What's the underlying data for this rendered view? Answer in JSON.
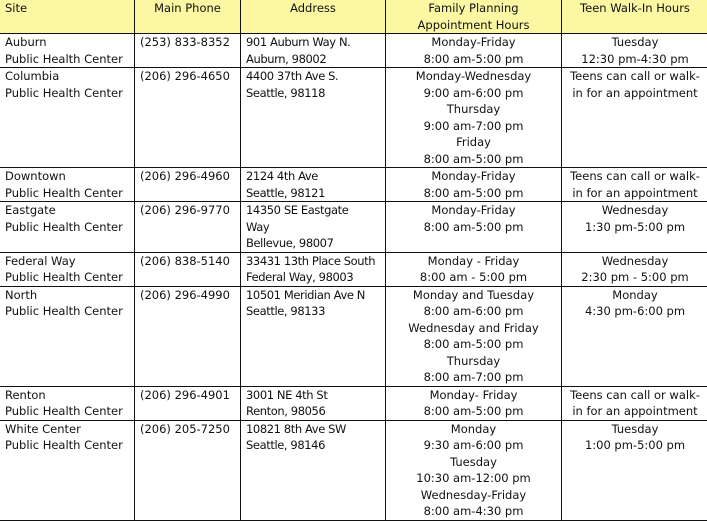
{
  "header": {
    "site": "Site",
    "phone": "Main Phone",
    "address": "Address",
    "family_planning": "Family Planning Appointment Hours",
    "teen": "Teen Walk-In Hours"
  },
  "colors": {
    "header_bg": "#fbf7a3"
  },
  "rows": [
    {
      "site": [
        "Auburn",
        "Public Health Center"
      ],
      "phone": "(253) 833-8352",
      "address": [
        "901 Auburn Way N.",
        "Auburn, 98002"
      ],
      "fp": [
        "Monday-Friday",
        "8:00 am-5:00 pm"
      ],
      "teen": [
        "Tuesday",
        "12:30 pm-4:30 pm"
      ]
    },
    {
      "site": [
        "Columbia",
        "Public Health Center"
      ],
      "phone": "(206) 296-4650",
      "address": [
        "4400 37th Ave S.",
        "Seattle, 98118"
      ],
      "fp": [
        "Monday-Wednesday",
        "9:00 am-6:00 pm",
        "Thursday",
        "9:00 am-7:00 pm",
        "Friday",
        "8:00 am-5:00 pm"
      ],
      "teen": [
        "Teens can call or walk-",
        "in for an appointment"
      ]
    },
    {
      "site": [
        "Downtown",
        "Public Health Center"
      ],
      "phone": "(206) 296-4960",
      "address": [
        "2124 4th Ave",
        "Seattle, 98121"
      ],
      "fp": [
        "Monday-Friday",
        "8:00 am-5:00 pm"
      ],
      "teen": [
        "Teens can call or walk-",
        "in for an appointment"
      ]
    },
    {
      "site": [
        "Eastgate",
        "Public Health Center"
      ],
      "phone": "(206) 296-9770",
      "address": [
        "14350 SE Eastgate",
        "Way",
        "Bellevue, 98007"
      ],
      "fp": [
        "Monday-Friday",
        "8:00 am-5:00 pm"
      ],
      "teen": [
        "Wednesday",
        "1:30 pm-5:00 pm"
      ]
    },
    {
      "site": [
        "Federal Way",
        "Public Health Center"
      ],
      "phone": "(206) 838-5140",
      "address": [
        "33431 13th Place South",
        "Federal Way, 98003"
      ],
      "fp": [
        "Monday - Friday",
        "8:00 am - 5:00 pm"
      ],
      "teen": [
        "Wednesday",
        "2:30 pm - 5:00 pm"
      ]
    },
    {
      "site": [
        "North",
        "Public Health Center"
      ],
      "phone": "(206) 296-4990",
      "address": [
        "10501 Meridian Ave N",
        "Seattle, 98133"
      ],
      "fp": [
        "Monday and Tuesday",
        "8:00 am-6:00 pm",
        "Wednesday and Friday",
        "8:00 am-5:00 pm",
        "Thursday",
        "8:00 am-7:00 pm"
      ],
      "teen": [
        "Monday",
        "4:30 pm-6:00 pm"
      ]
    },
    {
      "site": [
        "Renton",
        "Public Health Center"
      ],
      "phone": "(206) 296-4901",
      "address": [
        "3001 NE 4th St",
        "Renton, 98056"
      ],
      "fp": [
        "Monday- Friday",
        "8:00 am-5:00 pm"
      ],
      "teen": [
        "Teens can call or walk-",
        "in for an appointment"
      ]
    },
    {
      "site": [
        "White Center",
        "Public Health Center"
      ],
      "phone": "(206) 205-7250",
      "address": [
        "10821 8th Ave SW",
        "Seattle, 98146"
      ],
      "fp": [
        "Monday",
        "9:30 am-6:00 pm",
        "Tuesday",
        "10:30 am-12:00 pm",
        "Wednesday-Friday",
        "8:00 am-4:30 pm"
      ],
      "teen": [
        "Tuesday",
        "1:00 pm-5:00 pm"
      ]
    }
  ]
}
